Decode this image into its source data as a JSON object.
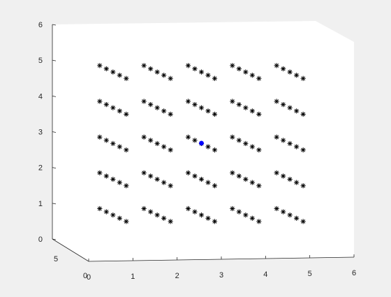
{
  "chart_data": {
    "type": "scatter",
    "title": "",
    "xlabel": "",
    "ylabel": "",
    "zlabel": "",
    "xlim": [
      0,
      6
    ],
    "ylim": [
      0,
      6
    ],
    "zlim": [
      0,
      5
    ],
    "x_ticks": [
      "0",
      "1",
      "2",
      "3",
      "4",
      "5",
      "6"
    ],
    "y_ticks": [
      "0",
      "1",
      "2",
      "3",
      "4",
      "5",
      "6"
    ],
    "z_ticks": [
      "0",
      "5"
    ],
    "grid": false,
    "series": [
      {
        "marker": "asterisk",
        "color": "#000000",
        "clusters": {
          "cols": [
            0.25,
            1.25,
            2.25,
            3.25,
            4.25
          ],
          "rows": [
            0.85,
            1.85,
            2.85,
            3.85,
            4.85
          ],
          "x_offsets": [
            0.0,
            0.15,
            0.3,
            0.45,
            0.6
          ],
          "y_offsets": [
            0.0,
            -0.09,
            -0.18,
            -0.27,
            -0.36
          ]
        }
      },
      {
        "marker": "circle",
        "color": "#0000ff",
        "points": [
          {
            "x": 2.55,
            "y": 2.68
          }
        ]
      }
    ]
  }
}
